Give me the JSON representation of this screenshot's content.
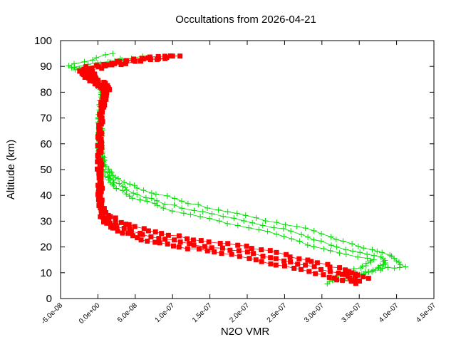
{
  "chart_data": {
    "type": "line",
    "title": "Occultations from 2026-04-21",
    "xlabel": "N2O VMR",
    "ylabel": "Altitude (km)",
    "xlim": [
      -5e-08,
      4.5e-07
    ],
    "ylim": [
      0,
      100
    ],
    "x_ticks": [
      "-5.0e-08",
      "0.0e+00",
      "5.0e-08",
      "1.0e-07",
      "1.5e-07",
      "2.0e-07",
      "2.5e-07",
      "3.0e-07",
      "3.5e-07",
      "4.0e-07",
      "4.5e-07"
    ],
    "x_tick_values": [
      -5e-08,
      0,
      5e-08,
      1e-07,
      1.5e-07,
      2e-07,
      2.5e-07,
      3e-07,
      3.5e-07,
      4e-07,
      4.5e-07
    ],
    "y_ticks": [
      "0",
      "10",
      "20",
      "30",
      "40",
      "50",
      "60",
      "70",
      "80",
      "90",
      "100"
    ],
    "y_tick_values": [
      0,
      10,
      20,
      30,
      40,
      50,
      60,
      70,
      80,
      90,
      100
    ],
    "grid": false,
    "series": [
      {
        "color": "#00dd00",
        "marker": "plus",
        "profiles": [
          {
            "x": [
              3.1e-07,
              3.2e-07,
              3.5e-07,
              3.7e-07,
              3e-07,
              2.4e-07,
              1.6e-07,
              9e-08,
              4e-08,
              1.5e-08,
              6e-09,
              3e-09,
              2e-09,
              2e-09,
              2e-09,
              3e-09,
              6e-09,
              -5e-09,
              -2e-08,
              3e-08
            ],
            "y": [
              6,
              9,
              12,
              15,
              19,
              25,
              30,
              35,
              40,
              45,
              50,
              55,
              60,
              65,
              70,
              75,
              80,
              85,
              89,
              93
            ]
          },
          {
            "x": [
              3.3e-07,
              3.6e-07,
              3.85e-07,
              3.8e-07,
              3.2e-07,
              2.6e-07,
              1.8e-07,
              1e-07,
              4.5e-08,
              1.8e-08,
              7e-09,
              4e-09,
              3e-09,
              3e-09,
              3e-09,
              4e-09,
              8e-09,
              -8e-09,
              -3e-08,
              6e-08
            ],
            "y": [
              7,
              10,
              13,
              16,
              20,
              26,
              31,
              36,
              41,
              46,
              51,
              56,
              61,
              66,
              71,
              76,
              81,
              86,
              90,
              94
            ]
          },
          {
            "x": [
              3.4e-07,
              3.7e-07,
              4.1e-07,
              3.9e-07,
              3.4e-07,
              2.8e-07,
              2e-07,
              1.2e-07,
              6e-08,
              2.2e-08,
              8e-09,
              4e-09,
              3e-09,
              3e-09,
              3e-09,
              5e-09,
              1.2e-08,
              -1e-08,
              -4e-08,
              2e-08
            ],
            "y": [
              8,
              11,
              12.5,
              17,
              21,
              27,
              32,
              37,
              42,
              47,
              52,
              57,
              62,
              67,
              72,
              77,
              82,
              87,
              90,
              95
            ]
          }
        ]
      },
      {
        "color": "#ff0000",
        "marker": "square",
        "profiles": [
          {
            "x": [
              3.5e-07,
              3.2e-07,
              2.6e-07,
              2e-07,
              1.3e-07,
              7e-08,
              2.5e-08,
              6e-09,
              3e-09,
              2e-09,
              2e-09,
              3e-09,
              5e-09,
              1.2e-08,
              -5e-09,
              -2e-08,
              4e-08,
              1e-07
            ],
            "y": [
              7,
              10,
              14,
              18,
              21,
              24,
              28,
              32,
              38,
              45,
              55,
              65,
              75,
              81,
              85,
              89,
              92,
              94
            ]
          },
          {
            "x": [
              3.6e-07,
              3.3e-07,
              2.8e-07,
              2.2e-07,
              1.5e-07,
              8.5e-08,
              3.5e-08,
              8e-09,
              4e-09,
              3e-09,
              3e-09,
              4e-09,
              7e-09,
              1.5e-08,
              -3e-09,
              -1.5e-08,
              5e-08,
              1.1e-07
            ],
            "y": [
              8,
              11,
              15,
              19,
              22,
              25,
              29,
              33,
              39,
              47,
              57,
              67,
              76,
              82,
              86,
              90,
              93,
              94
            ]
          },
          {
            "x": [
              3.45e-07,
              3e-07,
              2.4e-07,
              1.8e-07,
              1.1e-07,
              6e-08,
              2e-08,
              5e-09,
              3e-09,
              2e-09,
              2e-09,
              3e-09,
              6e-09,
              1e-08,
              -8e-09,
              -2.5e-08,
              3e-08,
              9e-08
            ],
            "y": [
              6,
              9,
              13,
              17,
              20,
              23,
              27,
              31,
              37,
              44,
              54,
              64,
              74,
              80,
              84,
              88,
              91,
              93
            ]
          }
        ]
      }
    ]
  }
}
